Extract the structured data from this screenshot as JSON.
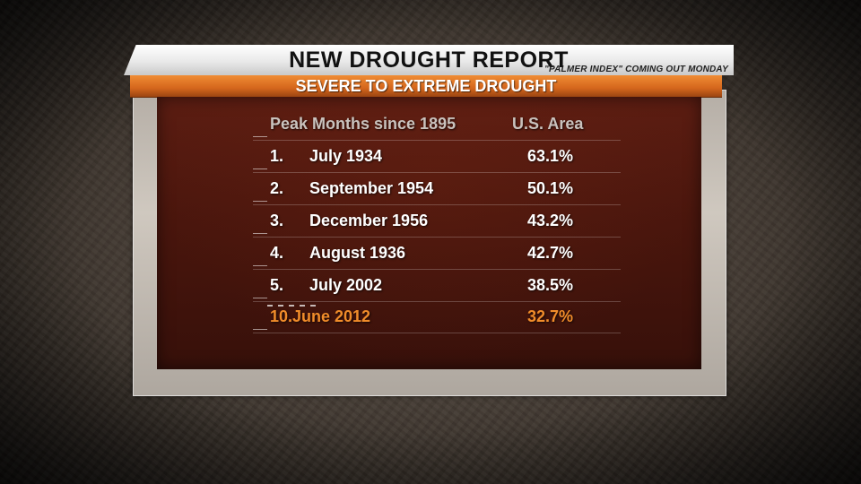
{
  "graphic": {
    "title": "NEW DROUGHT REPORT",
    "subtitle": "\"PALMER INDEX\" COMING OUT MONDAY",
    "banner": "SEVERE TO EXTREME DROUGHT"
  },
  "table": {
    "header": {
      "label": "Peak Months since 1895",
      "value": "U.S. Area"
    },
    "rows": [
      {
        "rank": "1.",
        "date": "July 1934",
        "area": "63.1%"
      },
      {
        "rank": "2.",
        "date": "September 1954",
        "area": "50.1%"
      },
      {
        "rank": "3.",
        "date": "December 1956",
        "area": "43.2%"
      },
      {
        "rank": "4.",
        "date": "August 1936",
        "area": "42.7%"
      },
      {
        "rank": "5.",
        "date": "July 2002",
        "area": "38.5%"
      }
    ],
    "highlight": {
      "rank": "10.",
      "date": "June 2012",
      "area": "32.7%"
    }
  },
  "colors": {
    "highlight": "#f08c2a",
    "banner": "#e07a2a",
    "panel": "#4a160d"
  }
}
